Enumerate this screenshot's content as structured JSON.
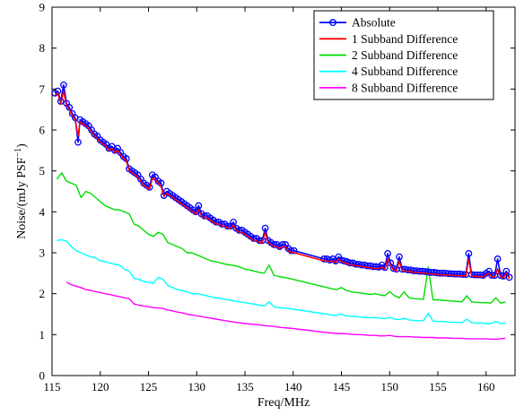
{
  "chart_data": {
    "type": "line",
    "xlabel": "Freq/MHz",
    "ylabel": "Noise/(mJy PSF",
    "ylabel_sup": "−1",
    "ylabel_close": ")",
    "xlim": [
      115,
      163
    ],
    "ylim": [
      0,
      9
    ],
    "xticks": [
      115,
      120,
      125,
      130,
      135,
      140,
      145,
      150,
      155,
      160
    ],
    "yticks": [
      0,
      1,
      2,
      3,
      4,
      5,
      6,
      7,
      8,
      9
    ],
    "grid": false,
    "legend_position": "top-right",
    "series": [
      {
        "name": "Absolute",
        "color": "#0000ff",
        "marker": "circle",
        "x": [
          115.3,
          115.6,
          115.9,
          116.2,
          116.5,
          116.8,
          117.1,
          117.4,
          117.7,
          117.9,
          118.2,
          118.5,
          118.8,
          119.1,
          119.4,
          119.7,
          120.0,
          120.3,
          120.6,
          120.9,
          121.2,
          121.5,
          121.8,
          122.1,
          122.4,
          122.7,
          123.0,
          123.3,
          123.6,
          123.9,
          124.2,
          124.5,
          124.8,
          125.1,
          125.4,
          125.7,
          126.0,
          126.3,
          126.6,
          126.9,
          127.2,
          127.5,
          127.8,
          128.1,
          128.4,
          128.7,
          129.0,
          129.3,
          129.6,
          129.9,
          130.2,
          130.5,
          130.8,
          131.1,
          131.4,
          131.7,
          132.0,
          132.3,
          132.6,
          132.9,
          133.2,
          133.5,
          133.8,
          134.1,
          134.4,
          134.7,
          135.0,
          135.3,
          135.6,
          135.9,
          136.2,
          136.5,
          136.8,
          137.1,
          137.4,
          137.7,
          138.0,
          138.3,
          138.6,
          138.9,
          139.2,
          139.5,
          139.8,
          140.1,
          143.2,
          143.5,
          143.8,
          144.1,
          144.4,
          144.7,
          145.0,
          145.3,
          145.6,
          145.9,
          146.2,
          146.5,
          146.8,
          147.1,
          147.4,
          147.7,
          148.0,
          148.3,
          148.6,
          148.9,
          149.2,
          149.5,
          149.8,
          150.1,
          150.4,
          150.7,
          151.0,
          151.3,
          151.6,
          151.9,
          152.2,
          152.5,
          152.8,
          153.1,
          153.4,
          153.7,
          154.0,
          154.3,
          154.6,
          154.9,
          155.2,
          155.5,
          155.8,
          156.1,
          156.4,
          156.7,
          157.0,
          157.3,
          157.6,
          157.9,
          158.2,
          158.5,
          158.8,
          159.1,
          159.4,
          159.7,
          160.0,
          160.3,
          160.6,
          160.9,
          161.2,
          161.5,
          161.8,
          162.1,
          162.4
        ],
        "y": [
          6.9,
          6.95,
          6.7,
          7.1,
          6.65,
          6.55,
          6.4,
          6.3,
          5.7,
          6.25,
          6.2,
          6.15,
          6.1,
          6.0,
          5.9,
          5.85,
          5.75,
          5.7,
          5.65,
          5.55,
          5.6,
          5.5,
          5.55,
          5.45,
          5.35,
          5.3,
          5.05,
          5.0,
          4.95,
          4.9,
          4.8,
          4.7,
          4.65,
          4.6,
          4.9,
          4.85,
          4.75,
          4.7,
          4.4,
          4.5,
          4.45,
          4.4,
          4.35,
          4.3,
          4.25,
          4.2,
          4.15,
          4.1,
          4.05,
          4.0,
          4.15,
          3.95,
          3.9,
          3.9,
          3.85,
          3.8,
          3.75,
          3.75,
          3.7,
          3.7,
          3.65,
          3.65,
          3.75,
          3.6,
          3.55,
          3.55,
          3.5,
          3.45,
          3.4,
          3.35,
          3.35,
          3.3,
          3.3,
          3.6,
          3.3,
          3.25,
          3.2,
          3.2,
          3.15,
          3.2,
          3.2,
          3.1,
          3.05,
          3.05,
          2.85,
          2.85,
          2.82,
          2.85,
          2.8,
          2.9,
          2.82,
          2.8,
          2.78,
          2.75,
          2.75,
          2.72,
          2.72,
          2.7,
          2.7,
          2.68,
          2.68,
          2.66,
          2.66,
          2.65,
          2.7,
          2.64,
          2.98,
          2.75,
          2.62,
          2.6,
          2.9,
          2.6,
          2.6,
          2.58,
          2.58,
          2.56,
          2.56,
          2.55,
          2.55,
          2.54,
          2.53,
          2.52,
          2.52,
          2.51,
          2.5,
          2.5,
          2.5,
          2.49,
          2.49,
          2.48,
          2.48,
          2.48,
          2.47,
          2.47,
          2.98,
          2.47,
          2.46,
          2.46,
          2.46,
          2.45,
          2.5,
          2.55,
          2.45,
          2.45,
          2.85,
          2.45,
          2.43,
          2.55,
          2.4
        ]
      },
      {
        "name": "1 Subband Difference",
        "color": "#ff0000",
        "marker": "none",
        "x": [
          115.3,
          115.6,
          115.9,
          116.2,
          116.5,
          116.8,
          117.1,
          117.4,
          117.7,
          117.9,
          118.2,
          118.5,
          118.8,
          119.1,
          119.4,
          119.7,
          120.0,
          120.3,
          120.6,
          120.9,
          121.2,
          121.5,
          121.8,
          122.1,
          122.4,
          122.7,
          123.0,
          123.3,
          123.6,
          123.9,
          124.2,
          124.5,
          124.8,
          125.1,
          125.4,
          125.7,
          126.0,
          126.3,
          126.6,
          126.9,
          127.2,
          127.5,
          127.8,
          128.1,
          128.4,
          128.7,
          129.0,
          129.3,
          129.6,
          129.9,
          130.2,
          130.5,
          130.8,
          131.1,
          131.4,
          131.7,
          132.0,
          132.3,
          132.6,
          132.9,
          133.2,
          133.5,
          133.8,
          134.1,
          134.4,
          134.7,
          135.0,
          135.3,
          135.6,
          135.9,
          136.2,
          136.5,
          136.8,
          137.1,
          137.4,
          137.7,
          138.0,
          138.3,
          138.6,
          138.9,
          139.2,
          139.5,
          139.8,
          140.1,
          143.2,
          143.5,
          143.8,
          144.1,
          144.4,
          144.7,
          145.0,
          145.3,
          145.6,
          145.9,
          146.2,
          146.5,
          146.8,
          147.1,
          147.4,
          147.7,
          148.0,
          148.3,
          148.6,
          148.9,
          149.2,
          149.5,
          149.8,
          150.1,
          150.4,
          150.7,
          151.0,
          151.3,
          151.6,
          151.9,
          152.2,
          152.5,
          152.8,
          153.1,
          153.4,
          153.7,
          154.0,
          154.3,
          154.6,
          154.9,
          155.2,
          155.5,
          155.8,
          156.1,
          156.4,
          156.7,
          157.0,
          157.3,
          157.6,
          157.9,
          158.2,
          158.5,
          158.8,
          159.1,
          159.4,
          159.7,
          160.0,
          160.3,
          160.6,
          160.9,
          161.2,
          161.5,
          161.8,
          162.1,
          162.4
        ],
        "y": [
          6.85,
          6.9,
          6.65,
          6.95,
          6.6,
          6.5,
          6.35,
          6.25,
          5.85,
          6.2,
          6.15,
          6.1,
          6.05,
          5.95,
          5.85,
          5.8,
          5.7,
          5.65,
          5.6,
          5.5,
          5.55,
          5.45,
          5.5,
          5.4,
          5.3,
          5.25,
          5.0,
          4.95,
          4.9,
          4.85,
          4.75,
          4.65,
          4.6,
          4.55,
          4.82,
          4.8,
          4.7,
          4.62,
          4.38,
          4.45,
          4.4,
          4.35,
          4.3,
          4.25,
          4.2,
          4.15,
          4.1,
          4.05,
          4.0,
          3.95,
          4.05,
          3.9,
          3.85,
          3.85,
          3.8,
          3.75,
          3.7,
          3.7,
          3.65,
          3.65,
          3.6,
          3.6,
          3.68,
          3.55,
          3.5,
          3.5,
          3.45,
          3.4,
          3.35,
          3.3,
          3.3,
          3.25,
          3.25,
          3.5,
          3.25,
          3.2,
          3.15,
          3.15,
          3.1,
          3.15,
          3.15,
          3.05,
          3.0,
          3.0,
          2.8,
          2.8,
          2.78,
          2.8,
          2.76,
          2.85,
          2.78,
          2.76,
          2.74,
          2.71,
          2.71,
          2.68,
          2.68,
          2.66,
          2.66,
          2.64,
          2.64,
          2.62,
          2.62,
          2.61,
          2.65,
          2.6,
          2.85,
          2.7,
          2.58,
          2.56,
          2.8,
          2.56,
          2.56,
          2.54,
          2.54,
          2.52,
          2.52,
          2.51,
          2.51,
          2.5,
          2.49,
          2.48,
          2.48,
          2.47,
          2.46,
          2.46,
          2.46,
          2.45,
          2.45,
          2.44,
          2.44,
          2.44,
          2.43,
          2.43,
          2.85,
          2.43,
          2.42,
          2.42,
          2.42,
          2.41,
          2.46,
          2.5,
          2.41,
          2.41,
          2.6,
          2.41,
          2.39,
          2.5,
          2.37
        ]
      },
      {
        "name": "2 Subband Difference",
        "color": "#00dd00",
        "marker": "none",
        "x": [
          115.5,
          116.0,
          116.5,
          117.0,
          117.5,
          118.0,
          118.5,
          119.0,
          119.5,
          120.0,
          120.5,
          121.0,
          121.5,
          122.0,
          122.5,
          123.0,
          123.5,
          124.0,
          124.5,
          125.0,
          125.5,
          126.0,
          126.5,
          127.0,
          127.5,
          128.0,
          128.5,
          129.0,
          129.5,
          130.0,
          130.5,
          131.0,
          131.5,
          132.0,
          132.5,
          133.0,
          133.5,
          134.0,
          134.5,
          135.0,
          135.5,
          136.0,
          136.5,
          137.0,
          137.5,
          138.0,
          138.5,
          139.0,
          139.5,
          140.0,
          143.5,
          144.0,
          144.5,
          145.0,
          145.5,
          146.0,
          146.5,
          147.0,
          147.5,
          148.0,
          148.5,
          149.0,
          149.5,
          150.0,
          150.5,
          151.0,
          151.5,
          152.0,
          152.5,
          153.0,
          153.5,
          154.0,
          154.5,
          155.0,
          155.5,
          156.0,
          156.5,
          157.0,
          157.5,
          158.0,
          158.5,
          159.0,
          159.5,
          160.0,
          160.5,
          161.0,
          161.5,
          162.0
        ],
        "y": [
          4.8,
          4.95,
          4.75,
          4.7,
          4.65,
          4.35,
          4.5,
          4.45,
          4.35,
          4.25,
          4.15,
          4.1,
          4.05,
          4.05,
          4.0,
          3.95,
          3.7,
          3.65,
          3.55,
          3.45,
          3.4,
          3.5,
          3.45,
          3.25,
          3.2,
          3.15,
          3.1,
          3.0,
          3.0,
          2.95,
          2.9,
          2.85,
          2.8,
          2.78,
          2.75,
          2.72,
          2.7,
          2.68,
          2.65,
          2.6,
          2.58,
          2.55,
          2.52,
          2.5,
          2.7,
          2.45,
          2.42,
          2.4,
          2.38,
          2.35,
          2.15,
          2.12,
          2.1,
          2.15,
          2.08,
          2.05,
          2.03,
          2.02,
          2.0,
          1.98,
          2.0,
          1.97,
          1.95,
          2.05,
          1.95,
          1.9,
          2.05,
          1.9,
          1.88,
          1.87,
          1.86,
          2.65,
          1.85,
          1.85,
          1.84,
          1.83,
          1.82,
          1.81,
          1.8,
          1.95,
          1.8,
          1.79,
          1.78,
          1.78,
          1.77,
          1.9,
          1.77,
          1.8
        ]
      },
      {
        "name": "4 Subband Difference",
        "color": "#00ffff",
        "marker": "none",
        "x": [
          115.5,
          116.0,
          116.5,
          117.0,
          117.5,
          118.0,
          118.5,
          119.0,
          119.5,
          120.0,
          120.5,
          121.0,
          121.5,
          122.0,
          122.5,
          123.0,
          123.5,
          124.0,
          124.5,
          125.0,
          125.5,
          126.0,
          126.5,
          127.0,
          127.5,
          128.0,
          128.5,
          129.0,
          129.5,
          130.0,
          130.5,
          131.0,
          131.5,
          132.0,
          132.5,
          133.0,
          133.5,
          134.0,
          134.5,
          135.0,
          135.5,
          136.0,
          136.5,
          137.0,
          137.5,
          138.0,
          138.5,
          139.0,
          139.5,
          140.0,
          143.5,
          144.0,
          144.5,
          145.0,
          145.5,
          146.0,
          146.5,
          147.0,
          147.5,
          148.0,
          148.5,
          149.0,
          149.5,
          150.0,
          150.5,
          151.0,
          151.5,
          152.0,
          152.5,
          153.0,
          153.5,
          154.0,
          154.5,
          155.0,
          155.5,
          156.0,
          156.5,
          157.0,
          157.5,
          158.0,
          158.5,
          159.0,
          159.5,
          160.0,
          160.5,
          161.0,
          161.5,
          162.0
        ],
        "y": [
          3.3,
          3.32,
          3.28,
          3.15,
          3.05,
          3.0,
          2.95,
          2.9,
          2.88,
          2.8,
          2.78,
          2.75,
          2.72,
          2.7,
          2.6,
          2.55,
          2.38,
          2.35,
          2.3,
          2.28,
          2.25,
          2.4,
          2.35,
          2.2,
          2.15,
          2.1,
          2.08,
          2.05,
          2.0,
          2.0,
          1.98,
          1.95,
          1.92,
          1.9,
          1.88,
          1.86,
          1.84,
          1.82,
          1.8,
          1.78,
          1.76,
          1.74,
          1.72,
          1.7,
          1.8,
          1.68,
          1.66,
          1.65,
          1.64,
          1.62,
          1.5,
          1.48,
          1.47,
          1.5,
          1.46,
          1.45,
          1.44,
          1.43,
          1.42,
          1.41,
          1.42,
          1.4,
          1.39,
          1.42,
          1.38,
          1.37,
          1.4,
          1.36,
          1.35,
          1.34,
          1.34,
          1.52,
          1.33,
          1.32,
          1.32,
          1.31,
          1.3,
          1.3,
          1.29,
          1.38,
          1.29,
          1.28,
          1.28,
          1.27,
          1.27,
          1.32,
          1.27,
          1.28
        ]
      },
      {
        "name": "8 Subband Difference",
        "color": "#ff00ff",
        "marker": "none",
        "x": [
          116.5,
          117.0,
          117.5,
          118.0,
          118.5,
          119.0,
          119.5,
          120.0,
          120.5,
          121.0,
          121.5,
          122.0,
          122.5,
          123.0,
          123.5,
          124.0,
          124.5,
          125.0,
          125.5,
          126.0,
          126.5,
          127.0,
          127.5,
          128.0,
          128.5,
          129.0,
          129.5,
          130.0,
          130.5,
          131.0,
          131.5,
          132.0,
          132.5,
          133.0,
          133.5,
          134.0,
          134.5,
          135.0,
          135.5,
          136.0,
          136.5,
          137.0,
          137.5,
          138.0,
          138.5,
          139.0,
          139.5,
          140.0,
          143.5,
          144.0,
          144.5,
          145.0,
          145.5,
          146.0,
          146.5,
          147.0,
          147.5,
          148.0,
          148.5,
          149.0,
          149.5,
          150.0,
          150.5,
          151.0,
          151.5,
          152.0,
          152.5,
          153.0,
          153.5,
          154.0,
          154.5,
          155.0,
          155.5,
          156.0,
          156.5,
          157.0,
          157.5,
          158.0,
          158.5,
          159.0,
          159.5,
          160.0,
          160.5,
          161.0,
          161.5,
          162.0
        ],
        "y": [
          2.28,
          2.22,
          2.18,
          2.15,
          2.1,
          2.08,
          2.05,
          2.03,
          2.0,
          1.98,
          1.95,
          1.93,
          1.9,
          1.88,
          1.75,
          1.72,
          1.7,
          1.68,
          1.66,
          1.65,
          1.64,
          1.6,
          1.58,
          1.55,
          1.53,
          1.5,
          1.48,
          1.46,
          1.44,
          1.42,
          1.4,
          1.38,
          1.36,
          1.34,
          1.32,
          1.3,
          1.29,
          1.27,
          1.26,
          1.25,
          1.24,
          1.22,
          1.21,
          1.2,
          1.18,
          1.17,
          1.16,
          1.15,
          1.05,
          1.04,
          1.03,
          1.03,
          1.02,
          1.01,
          1.0,
          1.0,
          0.99,
          0.98,
          0.98,
          0.97,
          0.97,
          0.98,
          0.96,
          0.95,
          0.95,
          0.95,
          0.94,
          0.94,
          0.93,
          0.93,
          0.93,
          0.92,
          0.92,
          0.92,
          0.91,
          0.91,
          0.91,
          0.9,
          0.9,
          0.9,
          0.9,
          0.9,
          0.89,
          0.89,
          0.9,
          0.91
        ]
      }
    ]
  }
}
